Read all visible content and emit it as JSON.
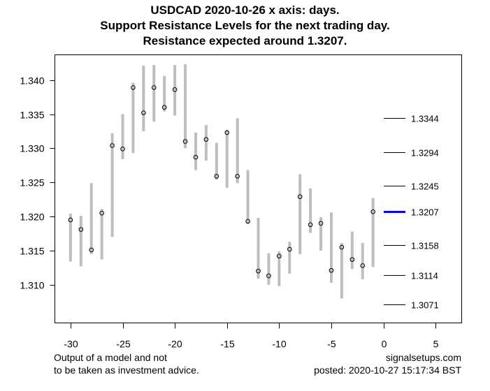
{
  "chart_data": {
    "type": "range-dot",
    "title": [
      "USDCAD 2020-10-26 x axis: days.",
      "Support Resistance Levels for the next trading day.",
      "Resistance expected around 1.3207."
    ],
    "xlabel": "",
    "ylabel": "",
    "xlim": [
      -31.5,
      7.5
    ],
    "ylim": [
      1.3044,
      1.3437
    ],
    "x_ticks": [
      -30,
      -25,
      -20,
      -15,
      -10,
      -5,
      0,
      5
    ],
    "x_tick_labels": [
      "-30",
      "-25",
      "-20",
      "-15",
      "-10",
      "-5",
      "0",
      "5"
    ],
    "y_ticks": [
      1.34,
      1.335,
      1.33,
      1.325,
      1.32,
      1.315,
      1.31
    ],
    "y_tick_labels": [
      "1.340",
      "1.335",
      "1.330",
      "1.325",
      "1.320",
      "1.315",
      "1.310"
    ],
    "grid": false,
    "series": [
      {
        "name": "daily range",
        "color": "#bebebe",
        "x": [
          -30,
          -29,
          -28,
          -27,
          -26,
          -25,
          -24,
          -23,
          -22,
          -21,
          -20,
          -19,
          -18,
          -17,
          -16,
          -15,
          -14,
          -13,
          -12,
          -11,
          -10,
          -9,
          -8,
          -7,
          -6,
          -5,
          -4,
          -3,
          -2,
          -1
        ],
        "high": [
          1.3204,
          1.3201,
          1.3249,
          1.3211,
          1.3322,
          1.335,
          1.3396,
          1.3421,
          1.3422,
          1.3406,
          1.3422,
          1.3423,
          1.3323,
          1.3334,
          1.3308,
          1.3327,
          1.3344,
          1.3268,
          1.3198,
          1.3146,
          1.3149,
          1.3163,
          1.3262,
          1.3241,
          1.3199,
          1.3206,
          1.3161,
          1.3178,
          1.3161,
          1.3227
        ],
        "low": [
          1.3134,
          1.3127,
          1.3145,
          1.3137,
          1.317,
          1.3284,
          1.3293,
          1.3325,
          1.3339,
          1.3354,
          1.3348,
          1.33,
          1.3268,
          1.3282,
          1.3254,
          1.3242,
          1.3249,
          1.3189,
          1.3109,
          1.31,
          1.3098,
          1.3116,
          1.3145,
          1.3176,
          1.315,
          1.3103,
          1.308,
          1.3123,
          1.3108,
          1.3126
        ],
        "close": [
          1.3195,
          1.3181,
          1.3151,
          1.3205,
          1.3304,
          1.3299,
          1.3389,
          1.3352,
          1.3389,
          1.336,
          1.3386,
          1.331,
          1.3287,
          1.3313,
          1.3259,
          1.3323,
          1.3259,
          1.3193,
          1.312,
          1.3113,
          1.3142,
          1.3152,
          1.3229,
          1.3188,
          1.319,
          1.3121,
          1.3155,
          1.3137,
          1.3128,
          1.3207
        ]
      }
    ],
    "levels": [
      {
        "value": 1.3344,
        "label": "1.3344",
        "color": "#000000",
        "highlight": false
      },
      {
        "value": 1.3294,
        "label": "1.3294",
        "color": "#000000",
        "highlight": false
      },
      {
        "value": 1.3245,
        "label": "1.3245",
        "color": "#000000",
        "highlight": false
      },
      {
        "value": 1.3207,
        "label": "1.3207",
        "color": "#0000ff",
        "highlight": true
      },
      {
        "value": 1.3158,
        "label": "1.3158",
        "color": "#000000",
        "highlight": false
      },
      {
        "value": 1.3114,
        "label": "1.3114",
        "color": "#000000",
        "highlight": false
      },
      {
        "value": 1.3071,
        "label": "1.3071",
        "color": "#000000",
        "highlight": false
      }
    ]
  },
  "footer": {
    "left_line1": "Output of a model and not",
    "left_line2": "to be taken as investment advice.",
    "right_line1": "signalsetups.com",
    "right_line2": "posted: 2020-10-27 15:17:34 BST"
  }
}
